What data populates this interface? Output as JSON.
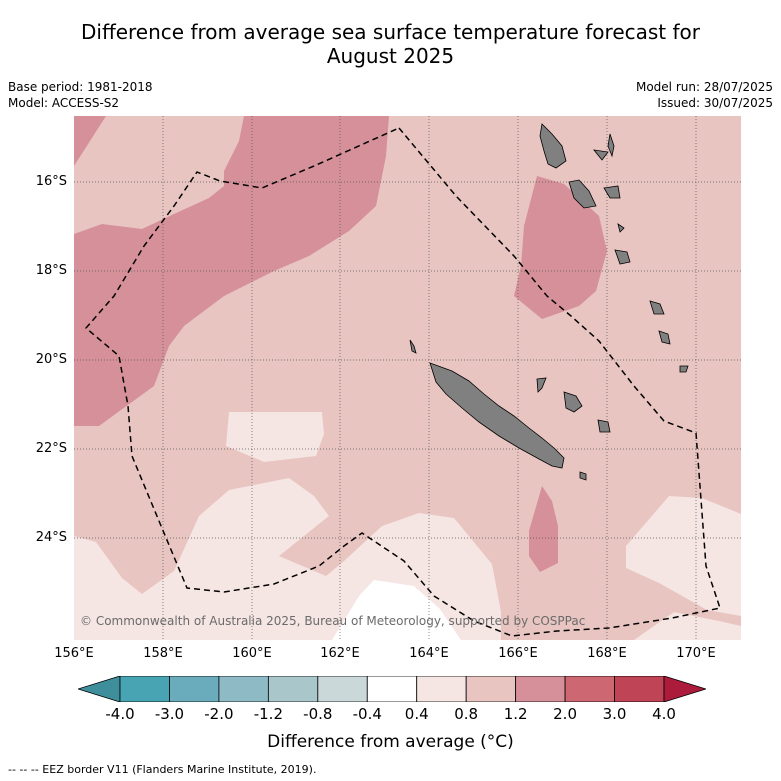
{
  "title_line1": "Difference from average sea surface temperature forecast for",
  "title_line2": "August 2025",
  "base_period": "Base period: 1981-2018",
  "model": "Model: ACCESS-S2",
  "model_run": "Model run: 28/07/2025",
  "issued": "Issued: 30/07/2025",
  "lat_labels": [
    "16°S",
    "18°S",
    "20°S",
    "22°S",
    "24°S"
  ],
  "lon_labels": [
    "156°E",
    "158°E",
    "160°E",
    "162°E",
    "164°E",
    "166°E",
    "168°E",
    "170°E"
  ],
  "credit": "© Commonwealth of Australia 2025, Bureau of Meteorology, supported by COSPPac",
  "colorbar": {
    "tick_labels": [
      "-4.0",
      "-3.0",
      "-2.0",
      "-1.2",
      "-0.8",
      "-0.4",
      "0.4",
      "0.8",
      "1.2",
      "2.0",
      "3.0",
      "4.0"
    ],
    "colors": [
      "#3e8e9c",
      "#48a3b2",
      "#6aacbb",
      "#8ebac5",
      "#a9c7cb",
      "#cbd8d9",
      "#ffffff",
      "#f5e5e3",
      "#e8c5c1",
      "#d5909a",
      "#cd6873",
      "#bf4456",
      "#ac1b3c"
    ],
    "title": "Difference from average (°C)"
  },
  "footnote": "--  --  -- EEZ border V11 (Flanders Marine Institute, 2019).",
  "map_colors": {
    "background_anomaly": "#e8c5c1",
    "warm_anomaly": "#d5909a",
    "mild_anomaly": "#f5e5e3",
    "neutral": "#ffffff",
    "land": "#808080"
  }
}
